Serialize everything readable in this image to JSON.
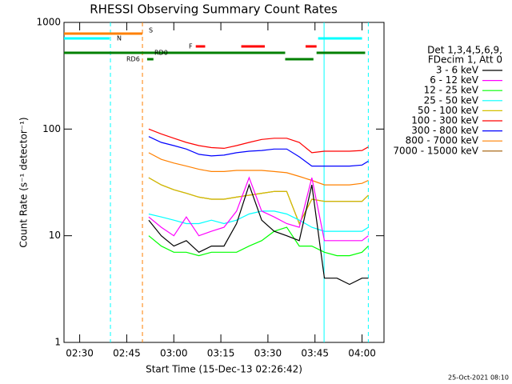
{
  "chart_data": {
    "type": "line",
    "title": "RHESSI Observing Summary Count Rates",
    "xlabel": "Start Time (15-Dec-13 02:26:42)",
    "ylabel": "Count Rate (s⁻¹ detector⁻¹)",
    "footer": "25-Oct-2021 08:10",
    "legend_header": [
      "Det 1,3,4,5,6,9,",
      "FDecim 1, Att 0"
    ],
    "log_y": true,
    "xlim": [
      145,
      247
    ],
    "ylim": [
      1,
      1000
    ],
    "xticks": [
      {
        "value": 150,
        "label": "02:30"
      },
      {
        "value": 165,
        "label": "02:45"
      },
      {
        "value": 180,
        "label": "03:00"
      },
      {
        "value": 195,
        "label": "03:15"
      },
      {
        "value": 210,
        "label": "03:30"
      },
      {
        "value": 225,
        "label": "03:45"
      },
      {
        "value": 240,
        "label": "04:00"
      }
    ],
    "yticks": [
      1,
      10,
      100,
      1000
    ],
    "x": [
      172,
      176,
      180,
      184,
      188,
      192,
      196,
      200,
      204,
      208,
      212,
      216,
      220,
      224,
      228,
      232,
      236,
      240,
      242
    ],
    "series": [
      {
        "name": "3 - 6 keV",
        "color": "#000000",
        "values": [
          14,
          10,
          8,
          9,
          7,
          8,
          8,
          13,
          30,
          14,
          11,
          10,
          9,
          30,
          4,
          4,
          3.5,
          4,
          4
        ]
      },
      {
        "name": "6 - 12 keV",
        "color": "#ff00ff",
        "values": [
          15,
          12,
          10,
          15,
          10,
          11,
          12,
          17,
          35,
          17,
          15,
          13,
          12,
          35,
          9,
          9,
          9,
          9,
          10
        ]
      },
      {
        "name": "12 - 25 keV",
        "color": "#00ff00",
        "values": [
          10,
          8,
          7,
          7,
          6.5,
          7,
          7,
          7,
          8,
          9,
          11,
          12,
          8,
          8,
          7,
          6.5,
          6.5,
          7,
          8
        ]
      },
      {
        "name": "25 - 50 keV",
        "color": "#00ffff",
        "values": [
          16,
          15,
          14,
          13,
          13,
          14,
          13,
          14,
          16,
          17,
          17,
          16,
          14,
          12,
          11,
          11,
          11,
          11,
          12
        ]
      },
      {
        "name": "50 - 100 keV",
        "color": "#d4c000",
        "values": [
          35,
          30,
          27,
          25,
          23,
          22,
          22,
          23,
          24,
          25,
          26,
          26,
          13,
          22,
          21,
          21,
          21,
          21,
          24
        ]
      },
      {
        "name": "100 - 300 keV",
        "color": "#ff0000",
        "values": [
          100,
          90,
          82,
          75,
          70,
          67,
          66,
          70,
          75,
          80,
          82,
          82,
          75,
          60,
          62,
          62,
          62,
          63,
          68
        ]
      },
      {
        "name": "300 - 800 keV",
        "color": "#0000ff",
        "values": [
          85,
          75,
          70,
          65,
          58,
          56,
          57,
          60,
          62,
          63,
          65,
          65,
          55,
          45,
          45,
          45,
          45,
          46,
          50
        ]
      },
      {
        "name": "800 - 7000 keV",
        "color": "#ff8000",
        "values": [
          60,
          52,
          48,
          45,
          42,
          40,
          40,
          41,
          41,
          41,
          40,
          39,
          36,
          33,
          30,
          30,
          30,
          31,
          33
        ]
      },
      {
        "name": "7000 - 15000 keV",
        "color": "#a05a00",
        "values": [
          35,
          30,
          27,
          25,
          23,
          22,
          22,
          23,
          24,
          25,
          26,
          26,
          13,
          22,
          21,
          21,
          21,
          21,
          24
        ]
      }
    ],
    "flags": [
      {
        "label": "S",
        "color": "#ff8000",
        "segments": [
          [
            145,
            170
          ]
        ]
      },
      {
        "label": "N",
        "color": "#00ffff",
        "segments": [
          [
            145,
            159.5
          ],
          [
            226,
            240
          ]
        ]
      },
      {
        "label": "F",
        "color": "#ff0000",
        "segments": [
          [
            187,
            190
          ],
          [
            201.5,
            209
          ],
          [
            222,
            225.5
          ]
        ]
      },
      {
        "label": "RD0",
        "color": "#008000",
        "segments": [
          [
            145,
            215.5
          ],
          [
            225.5,
            241
          ]
        ]
      },
      {
        "label": "RD6",
        "color": "#008000",
        "segments": [
          [
            171.5,
            173.5
          ],
          [
            215.5,
            224.5
          ]
        ]
      }
    ],
    "vlines": [
      {
        "x": 159.8,
        "color": "#00ffff",
        "dashed": true
      },
      {
        "x": 170,
        "color": "#ff8000",
        "dashed": true
      },
      {
        "x": 227.9,
        "color": "#00ffff",
        "dashed": false
      },
      {
        "x": 242,
        "color": "#00ffff",
        "dashed": true
      }
    ]
  }
}
